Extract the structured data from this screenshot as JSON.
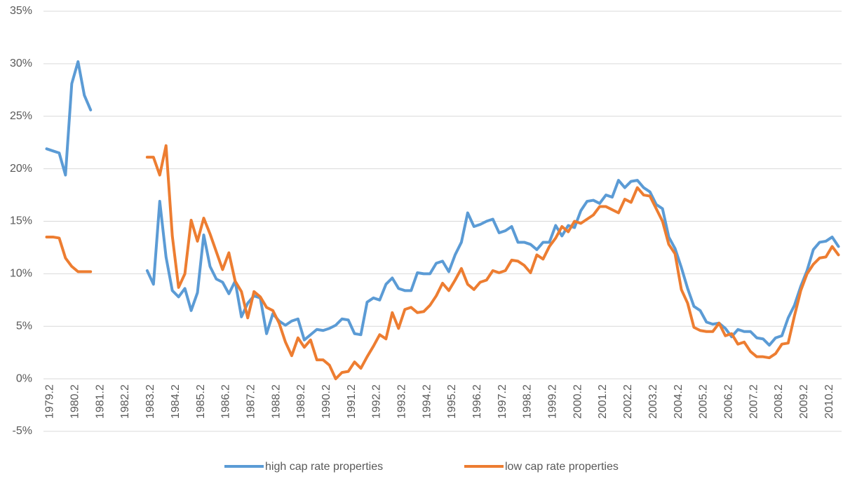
{
  "chart_data": {
    "type": "line",
    "categories": [
      "1979.2",
      null,
      null,
      null,
      "1980.2",
      null,
      null,
      null,
      "1981.2",
      null,
      null,
      null,
      "1982.2",
      null,
      null,
      null,
      "1983.2",
      null,
      null,
      null,
      "1984.2",
      null,
      null,
      null,
      "1985.2",
      null,
      null,
      null,
      "1986.2",
      null,
      null,
      null,
      "1987.2",
      null,
      null,
      null,
      "1988.2",
      null,
      null,
      null,
      "1989.2",
      null,
      null,
      null,
      "1990.2",
      null,
      null,
      null,
      "1991.2",
      null,
      null,
      null,
      "1992.2",
      null,
      null,
      null,
      "1993.2",
      null,
      null,
      null,
      "1994.2",
      null,
      null,
      null,
      "1995.2",
      null,
      null,
      null,
      "1996.2",
      null,
      null,
      null,
      "1997.2",
      null,
      null,
      null,
      "1998.2",
      null,
      null,
      null,
      "1999.2",
      null,
      null,
      null,
      "2000.2",
      null,
      null,
      null,
      "2001.2",
      null,
      null,
      null,
      "2002.2",
      null,
      null,
      null,
      "2003.2",
      null,
      null,
      null,
      "2004.2",
      null,
      null,
      null,
      "2005.2",
      null,
      null,
      null,
      "2006.2",
      null,
      null,
      null,
      "2007.2",
      null,
      null,
      null,
      "2008.2",
      null,
      null,
      null,
      "2009.2",
      null,
      null,
      null,
      "2010.2",
      null,
      null
    ],
    "series": [
      {
        "name": "high cap rate properties",
        "color": "#5b9bd5",
        "values": [
          21.9,
          21.7,
          21.5,
          19.4,
          28.1,
          30.2,
          27.0,
          25.6,
          null,
          null,
          null,
          null,
          null,
          null,
          null,
          null,
          10.3,
          9.0,
          16.9,
          11.6,
          8.4,
          7.8,
          8.6,
          6.5,
          8.2,
          13.7,
          10.7,
          9.5,
          9.2,
          8.1,
          9.3,
          5.9,
          7.2,
          7.9,
          7.7,
          4.3,
          6.2,
          5.5,
          5.1,
          5.5,
          5.7,
          3.7,
          4.2,
          4.7,
          4.6,
          4.8,
          5.1,
          5.7,
          5.6,
          4.3,
          4.2,
          7.3,
          7.7,
          7.5,
          9.0,
          9.6,
          8.6,
          8.4,
          8.4,
          10.1,
          10.0,
          10.0,
          11.0,
          11.2,
          10.2,
          11.8,
          13.0,
          15.8,
          14.5,
          14.7,
          15.0,
          15.2,
          13.9,
          14.1,
          14.5,
          13.0,
          13.0,
          12.8,
          12.3,
          13.0,
          13.0,
          14.6,
          13.6,
          14.6,
          14.4,
          16.0,
          16.9,
          17.0,
          16.7,
          17.5,
          17.3,
          18.9,
          18.2,
          18.8,
          18.9,
          18.2,
          17.8,
          16.6,
          16.2,
          13.5,
          12.4,
          10.6,
          8.6,
          6.9,
          6.5,
          5.4,
          5.2,
          5.3,
          4.8,
          4.0,
          4.7,
          4.5,
          4.5,
          3.9,
          3.8,
          3.2,
          3.9,
          4.1,
          5.8,
          7.0,
          8.8,
          10.3,
          12.3,
          13.0,
          13.1,
          13.5,
          12.6
        ]
      },
      {
        "name": "low cap rate properties",
        "color": "#ed7d31",
        "values": [
          13.5,
          13.5,
          13.4,
          11.5,
          10.7,
          10.2,
          10.2,
          10.2,
          null,
          null,
          null,
          null,
          null,
          null,
          null,
          null,
          21.1,
          21.1,
          19.4,
          22.2,
          13.6,
          8.7,
          10.0,
          15.1,
          13.1,
          15.3,
          13.8,
          12.1,
          10.4,
          12.0,
          9.3,
          8.3,
          5.8,
          8.3,
          7.8,
          6.8,
          6.5,
          5.3,
          3.5,
          2.2,
          3.9,
          3.0,
          3.7,
          1.8,
          1.8,
          1.3,
          0.0,
          0.6,
          0.7,
          1.6,
          1.0,
          2.1,
          3.1,
          4.2,
          3.8,
          6.3,
          4.8,
          6.6,
          6.8,
          6.3,
          6.4,
          7.0,
          7.9,
          9.1,
          8.4,
          9.4,
          10.5,
          9.0,
          8.5,
          9.2,
          9.4,
          10.3,
          10.1,
          10.3,
          11.3,
          11.2,
          10.8,
          10.1,
          11.8,
          11.4,
          12.6,
          13.4,
          14.5,
          14.0,
          15.0,
          14.8,
          15.2,
          15.6,
          16.4,
          16.4,
          16.1,
          15.8,
          17.1,
          16.8,
          18.2,
          17.5,
          17.4,
          16.2,
          15.0,
          12.8,
          11.9,
          8.5,
          7.2,
          4.9,
          4.6,
          4.5,
          4.5,
          5.3,
          4.1,
          4.3,
          3.3,
          3.5,
          2.6,
          2.1,
          2.1,
          2.0,
          2.4,
          3.3,
          3.4,
          6.0,
          8.4,
          10.0,
          10.9,
          11.5,
          11.6,
          12.6,
          11.8
        ]
      }
    ],
    "ylim": [
      -5,
      35
    ],
    "yticks": [
      {
        "value": -5,
        "label": "-5%"
      },
      {
        "value": 0,
        "label": "0%"
      },
      {
        "value": 5,
        "label": "5%"
      },
      {
        "value": 10,
        "label": "10%"
      },
      {
        "value": 15,
        "label": "15%"
      },
      {
        "value": 20,
        "label": "20%"
      },
      {
        "value": 25,
        "label": "25%"
      },
      {
        "value": 30,
        "label": "30%"
      },
      {
        "value": 35,
        "label": "35%"
      }
    ],
    "grid": true,
    "legend": "bottom"
  }
}
